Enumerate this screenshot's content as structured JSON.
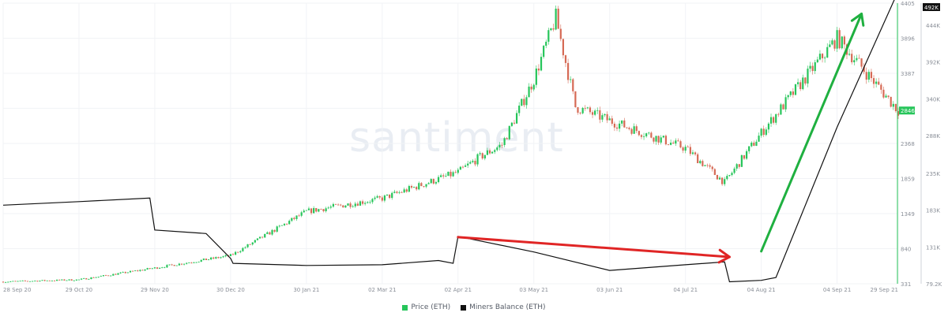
{
  "chart_data": {
    "type": "line",
    "watermark": "santiment",
    "x_tick_labels": [
      "28 Sep 20",
      "29 Oct 20",
      "29 Nov 20",
      "30 Dec 20",
      "30 Jan 21",
      "02 Mar 21",
      "02 Apr 21",
      "03 May 21",
      "03 Jun 21",
      "04 Jul 21",
      "04 Aug 21",
      "04 Sep 21",
      "29 Sep 21"
    ],
    "left_axis": {
      "ticks": [
        "4405",
        "3896",
        "3387",
        "2878",
        "2368",
        "1859",
        "1349",
        "840",
        "331"
      ],
      "ylim": [
        331,
        4405
      ]
    },
    "right_axis": {
      "ticks": [
        "444K",
        "392K",
        "340K",
        "288K",
        "235K",
        "183K",
        "131K",
        "79.2K"
      ],
      "ylim": [
        79200,
        475000
      ]
    },
    "last_price_label": "2846",
    "last_balance_label": "492K",
    "series": [
      {
        "name": "Price (ETH)",
        "type": "candlestick",
        "color": "#26c55a",
        "down_color": "#d66a55",
        "x": [
          "28 Sep 20",
          "29 Oct 20",
          "29 Nov 20",
          "30 Dec 20",
          "30 Jan 21",
          "02 Mar 21",
          "02 Apr 21",
          "10 Apr 21",
          "20 Apr 21",
          "03 May 21",
          "12 May 21",
          "20 May 21",
          "03 Jun 21",
          "04 Jul 21",
          "20 Jul 21",
          "04 Aug 21",
          "04 Sep 21",
          "29 Sep 21"
        ],
        "values": [
          360,
          390,
          560,
          740,
          1380,
          1570,
          1950,
          2150,
          2350,
          3300,
          4200,
          2900,
          2700,
          2300,
          1800,
          2520,
          3900,
          2846
        ]
      },
      {
        "name": "Miners Balance (ETH)",
        "type": "line",
        "color": "#111111",
        "x": [
          "28 Sep 20",
          "29 Oct 20",
          "27 Nov 20",
          "29 Nov 20",
          "20 Dec 20",
          "30 Dec 20",
          "31 Dec 20",
          "30 Jan 21",
          "02 Mar 21",
          "25 Mar 21",
          "31 Mar 21",
          "02 Apr 21",
          "03 May 21",
          "03 Jun 21",
          "04 Jul 21",
          "20 Jul 21",
          "22 Jul 21",
          "04 Aug 21",
          "10 Aug 21",
          "04 Sep 21",
          "29 Sep 21"
        ],
        "values": [
          190000,
          195000,
          200000,
          155000,
          150000,
          115000,
          108000,
          105000,
          106000,
          112000,
          108000,
          146000,
          124000,
          98000,
          106000,
          110000,
          82000,
          84000,
          88000,
          300000,
          492000
        ]
      }
    ],
    "annotations": [
      {
        "type": "arrow",
        "color": "#e02525",
        "from_x": "02 Apr 21",
        "from_y": 145000,
        "to_x": "22 Jul 21",
        "to_y": 117000
      },
      {
        "type": "arrow",
        "color": "#1fb040",
        "from_x": "04 Aug 21",
        "from_y": 125000,
        "to_x": "14 Sep 21",
        "to_y": 460000
      }
    ]
  }
}
